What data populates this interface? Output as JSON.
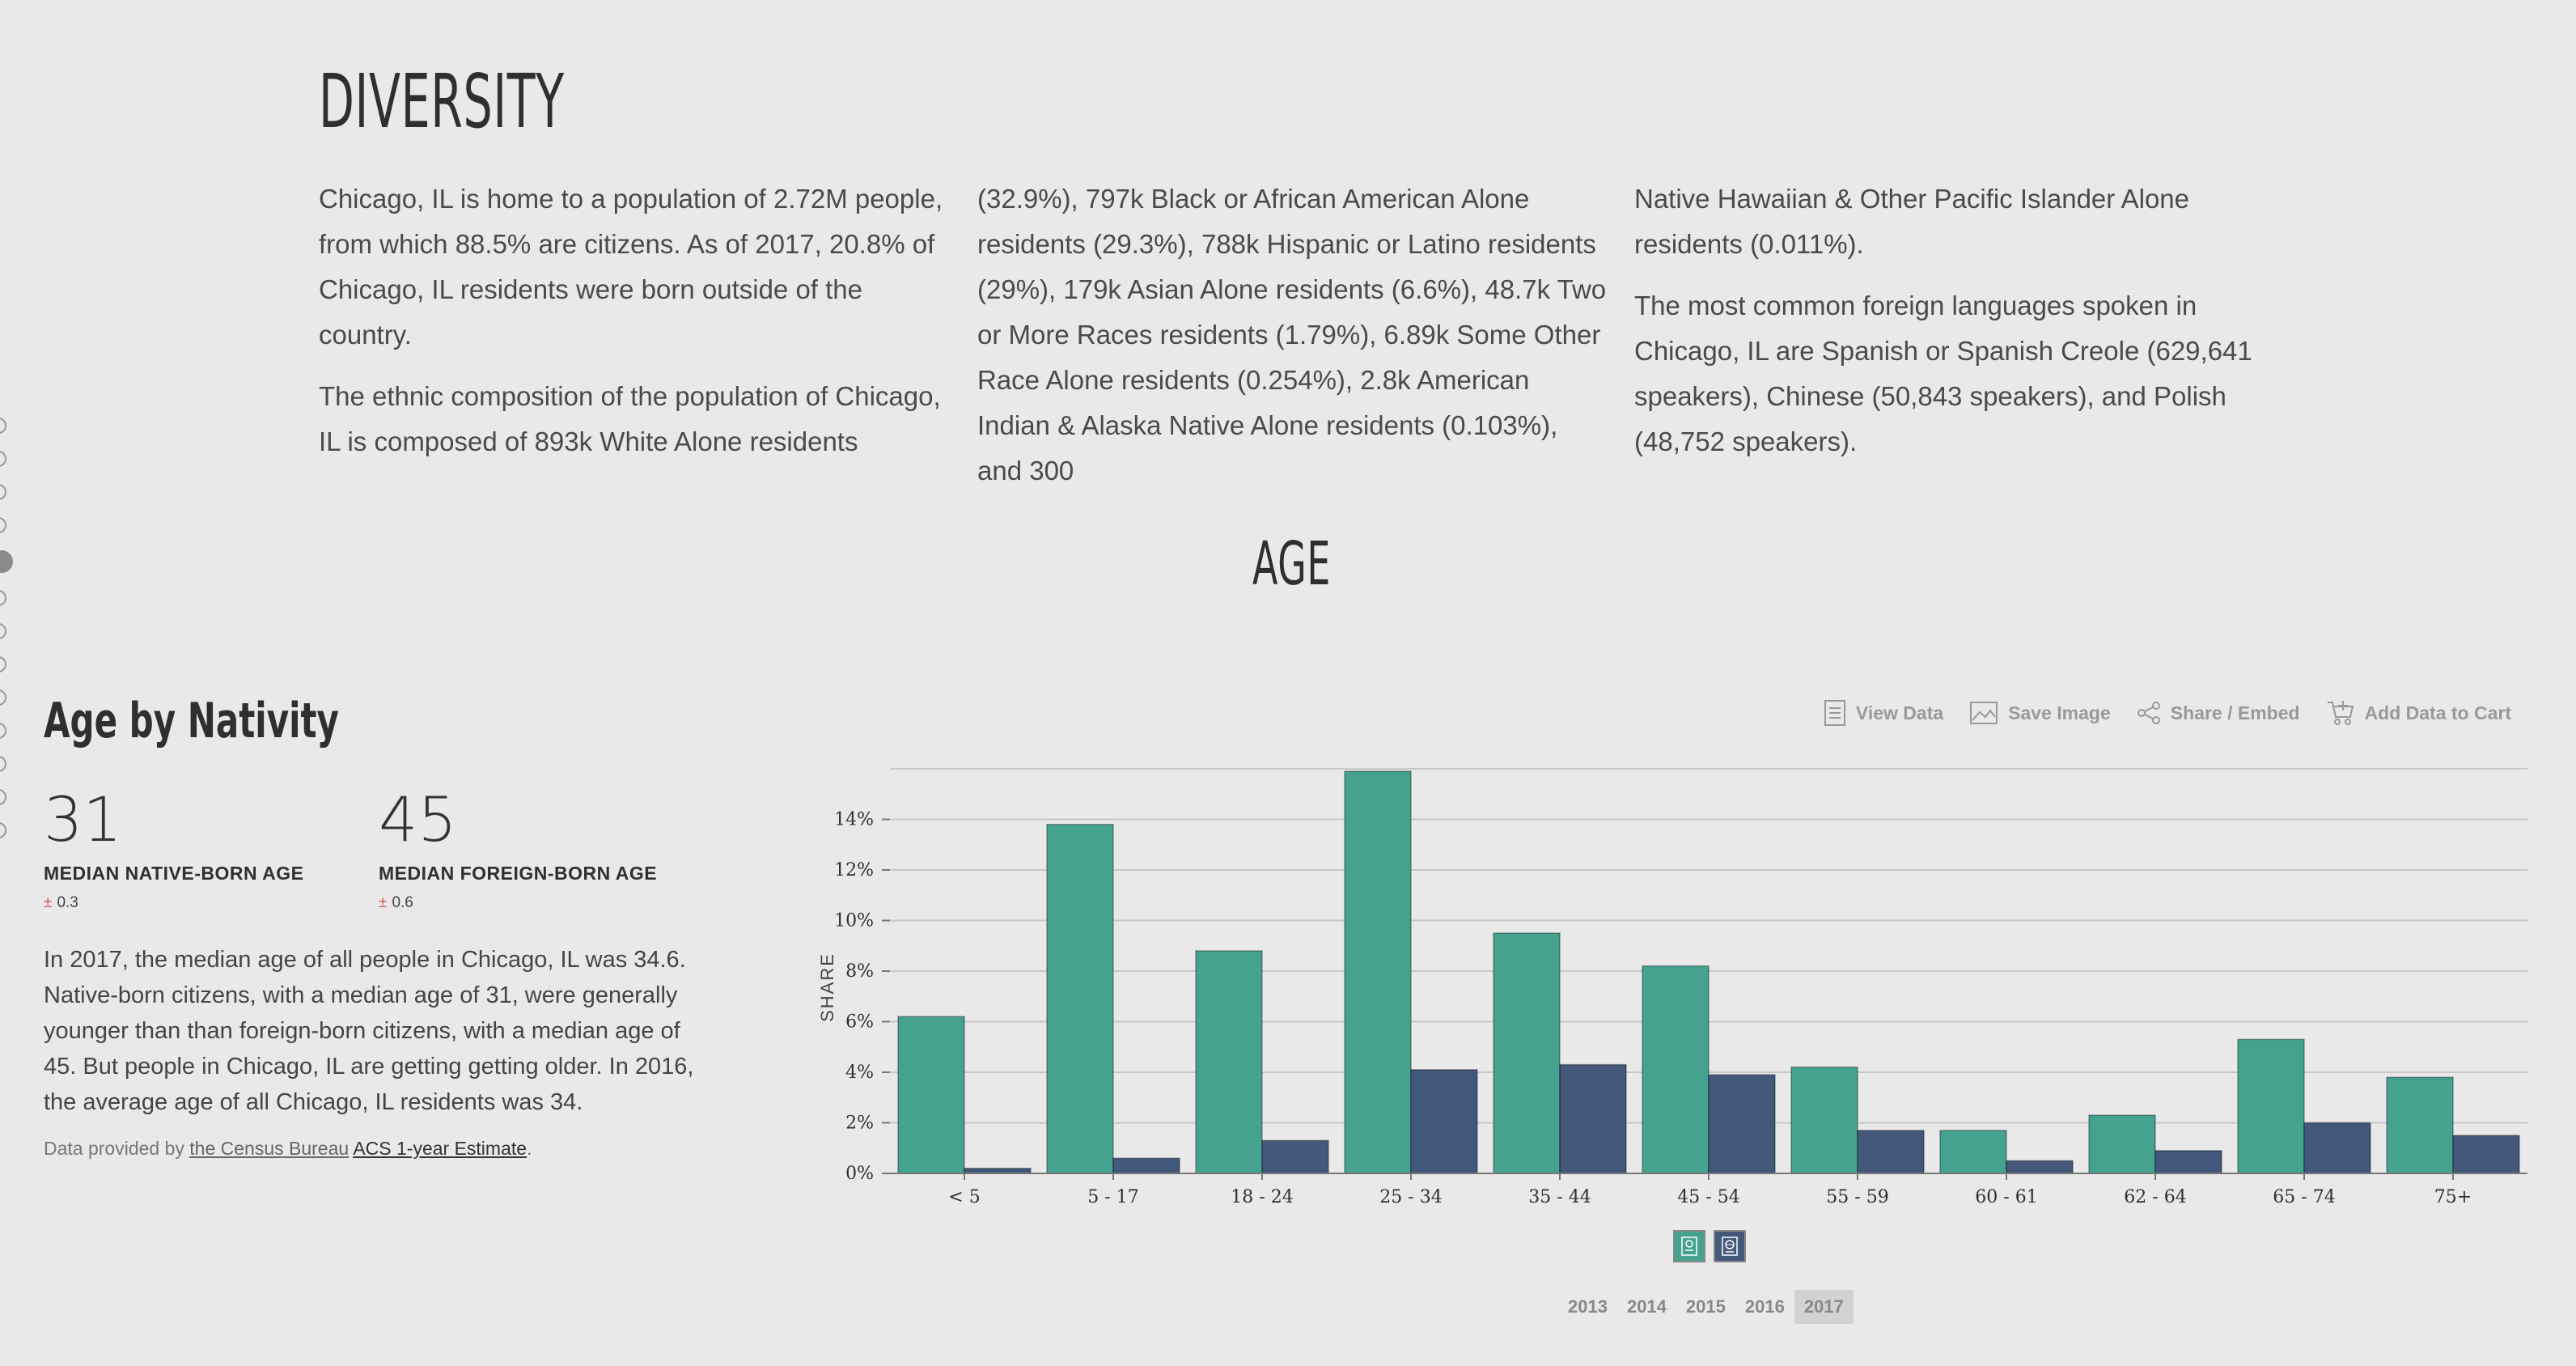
{
  "diversity": {
    "title": "DIVERSITY",
    "paragraphs": [
      "Chicago, IL is home to a population of 2.72M people, from which 88.5% are citizens. As of 2017, 20.8% of Chicago, IL residents were born outside of the country.",
      "The ethnic composition of the population of Chicago, IL is composed of 893k White Alone residents",
      "(32.9%), 797k Black or African American Alone residents (29.3%), 788k Hispanic or Latino residents (29%), 179k Asian Alone residents (6.6%), 48.7k Two or More Races residents (1.79%), 6.89k Some Other Race Alone residents (0.254%), 2.8k American Indian & Alaska Native Alone residents (0.103%), and 300",
      "Native Hawaiian & Other Pacific Islander Alone residents (0.011%).",
      "The most common foreign languages spoken in Chicago, IL are Spanish or Spanish Creole (629,641 speakers), Chinese (50,843 speakers), and Polish (48,752 speakers)."
    ]
  },
  "age_section": {
    "title": "AGE"
  },
  "age_by_nativity": {
    "heading": "Age by Nativity",
    "stats": [
      {
        "value": "31",
        "label": "MEDIAN NATIVE-BORN AGE",
        "moe_symbol": "±",
        "moe": "0.3"
      },
      {
        "value": "45",
        "label": "MEDIAN FOREIGN-BORN AGE",
        "moe_symbol": "±",
        "moe": "0.6"
      }
    ],
    "description": "In 2017, the median age of all people in Chicago, IL was 34.6. Native-born citizens, with a median age of 31, were generally younger than than foreign-born citizens, with a median age of 45. But people in Chicago, IL are getting getting older. In 2016, the average age of all Chicago, IL residents was 34.",
    "source": {
      "prefix": "Data provided by ",
      "provider": "the Census Bureau",
      "dataset": "ACS 1-year Estimate",
      "suffix": "."
    }
  },
  "toolbar": {
    "items": [
      {
        "label": "View Data",
        "icon": "document-icon"
      },
      {
        "label": "Save Image",
        "icon": "image-icon"
      },
      {
        "label": "Share / Embed",
        "icon": "share-icon"
      },
      {
        "label": "Add Data to Cart",
        "icon": "cart-icon"
      }
    ]
  },
  "years": {
    "options": [
      "2013",
      "2014",
      "2015",
      "2016",
      "2017"
    ],
    "selected": "2017"
  },
  "colors": {
    "native": "#45a28f",
    "foreign": "#43587a",
    "background": "#e9e9e9",
    "gridline": "#c8c8c8"
  },
  "chart_data": {
    "type": "bar",
    "ylabel": "SHARE",
    "ylim": [
      0,
      16
    ],
    "yticks": [
      "0%",
      "2%",
      "4%",
      "6%",
      "8%",
      "10%",
      "12%",
      "14%"
    ],
    "grid": true,
    "categories": [
      "< 5",
      "5 - 17",
      "18 - 24",
      "25 - 34",
      "35 - 44",
      "45 - 54",
      "55 - 59",
      "60 - 61",
      "62 - 64",
      "65 - 74",
      "75+"
    ],
    "series": [
      {
        "key": "native",
        "values": [
          6.2,
          13.8,
          8.8,
          15.9,
          9.5,
          8.2,
          4.2,
          1.7,
          2.3,
          5.3,
          3.8
        ]
      },
      {
        "key": "foreign",
        "values": [
          0.2,
          0.6,
          1.3,
          4.1,
          4.3,
          3.9,
          1.7,
          0.5,
          0.9,
          2.0,
          1.5
        ]
      }
    ],
    "legend_position": "bottom-center"
  }
}
